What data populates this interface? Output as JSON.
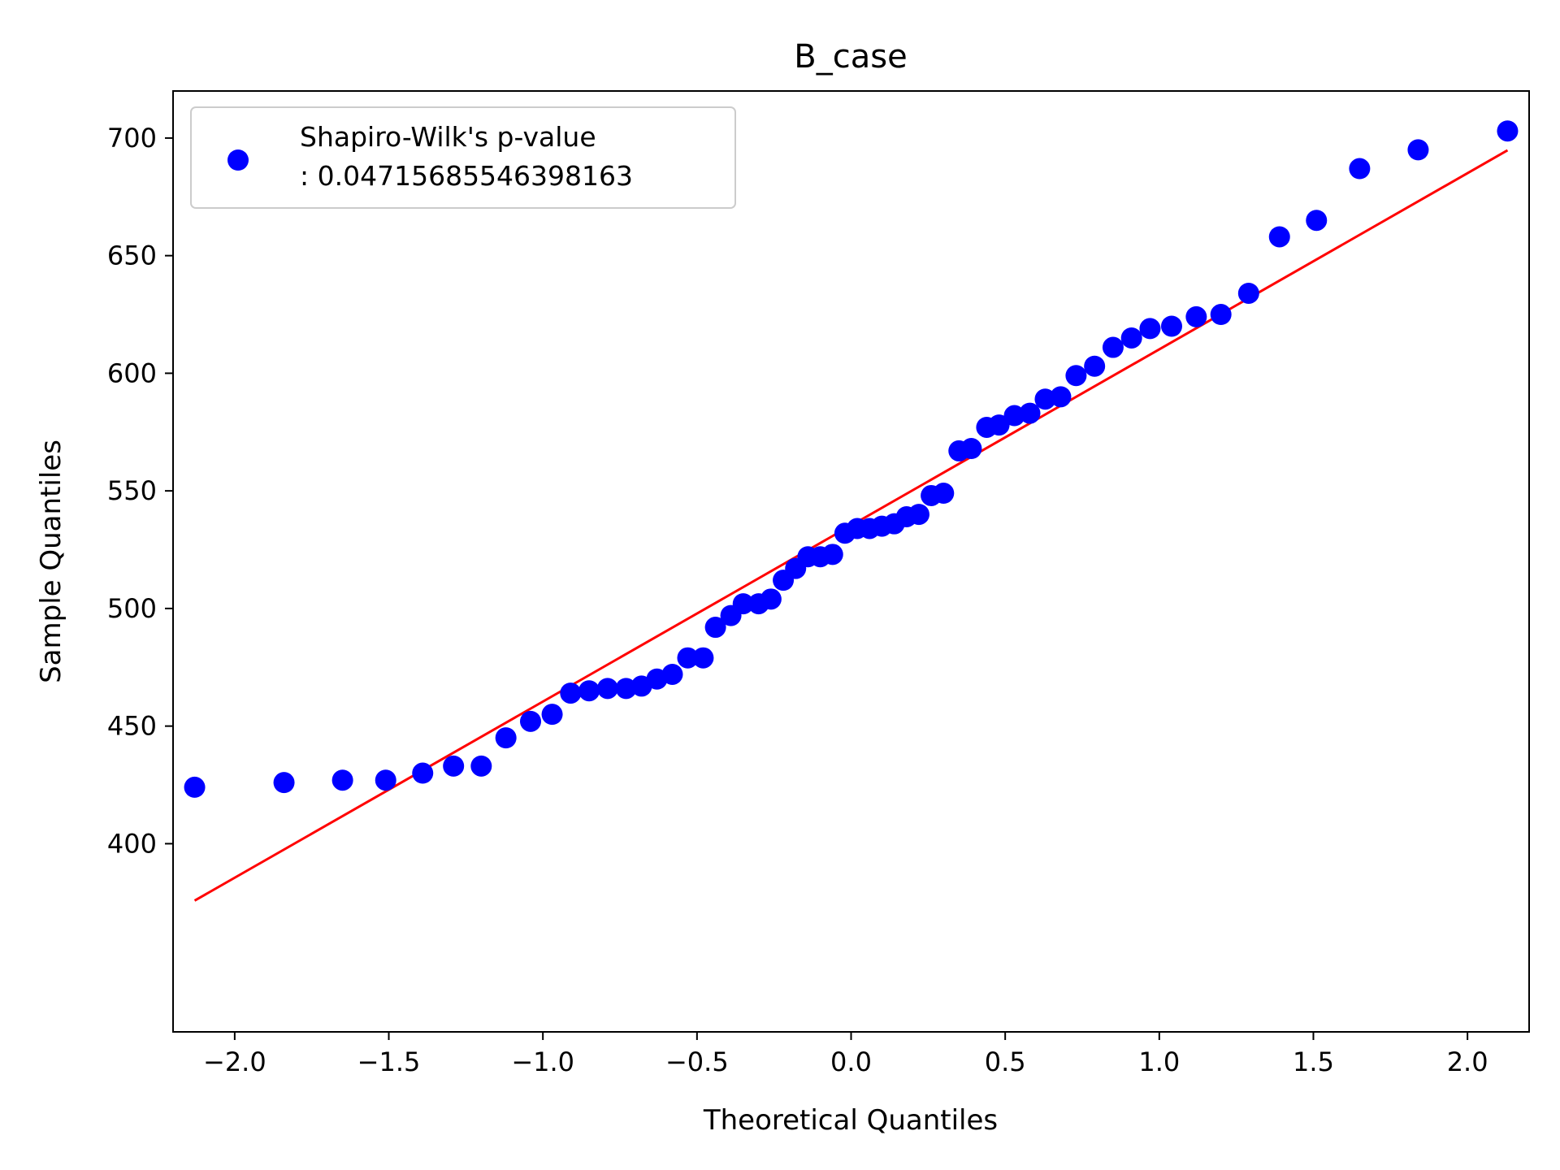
{
  "chart_data": {
    "type": "scatter",
    "title": "B_case",
    "xlabel": "Theoretical Quantiles",
    "ylabel": "Sample Quantiles",
    "xlim": [
      -2.2,
      2.2
    ],
    "ylim": [
      320,
      720
    ],
    "x_ticks": [
      -2.0,
      -1.5,
      -1.0,
      -0.5,
      0.0,
      0.5,
      1.0,
      1.5,
      2.0
    ],
    "x_tick_labels": [
      "−2.0",
      "−1.5",
      "−1.0",
      "−0.5",
      "0.0",
      "0.5",
      "1.0",
      "1.5",
      "2.0"
    ],
    "y_ticks": [
      400,
      450,
      500,
      550,
      600,
      650,
      700
    ],
    "y_tick_labels": [
      "400",
      "450",
      "500",
      "550",
      "600",
      "650",
      "700"
    ],
    "series": [
      {
        "name": "Shapiro-Wilk's p-value\n: 0.04715685546398163",
        "legend_line1": "Shapiro-Wilk's p-value",
        "legend_line2": ": 0.04715685546398163",
        "color": "#0000ff",
        "x": [
          -2.13,
          -1.84,
          -1.65,
          -1.51,
          -1.39,
          -1.29,
          -1.2,
          -1.12,
          -1.04,
          -0.97,
          -0.91,
          -0.85,
          -0.79,
          -0.73,
          -0.68,
          -0.63,
          -0.58,
          -0.53,
          -0.48,
          -0.44,
          -0.39,
          -0.35,
          -0.3,
          -0.26,
          -0.22,
          -0.18,
          -0.14,
          -0.1,
          -0.06,
          -0.02,
          0.02,
          0.06,
          0.1,
          0.14,
          0.18,
          0.22,
          0.26,
          0.3,
          0.35,
          0.39,
          0.44,
          0.48,
          0.53,
          0.58,
          0.63,
          0.68,
          0.73,
          0.79,
          0.85,
          0.91,
          0.97,
          1.04,
          1.12,
          1.2,
          1.29,
          1.39,
          1.51,
          1.65,
          1.84,
          2.13
        ],
        "y": [
          424,
          426,
          427,
          427,
          430,
          433,
          433,
          445,
          452,
          455,
          464,
          465,
          466,
          466,
          467,
          470,
          472,
          479,
          479,
          492,
          497,
          502,
          502,
          504,
          512,
          517,
          522,
          522,
          523,
          532,
          534,
          534,
          535,
          536,
          539,
          540,
          548,
          549,
          567,
          568,
          577,
          578,
          582,
          583,
          589,
          590,
          599,
          603,
          611,
          615,
          619,
          620,
          624,
          625,
          634,
          658,
          665,
          687,
          695,
          703
        ]
      }
    ],
    "fit_line": {
      "name": "reference line",
      "color": "#ff0000",
      "x": [
        -2.13,
        2.13
      ],
      "y": [
        375.8,
        694.8
      ]
    },
    "legend_position": "upper-left",
    "grid": false
  }
}
